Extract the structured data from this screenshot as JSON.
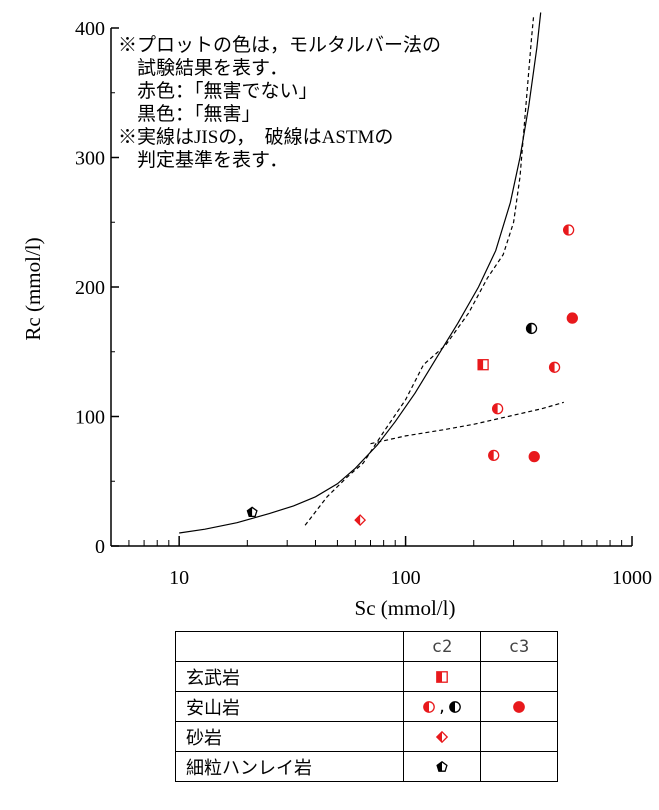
{
  "chart_data": {
    "type": "scatter",
    "title": "",
    "xlabel": "Sc (mmol/l)",
    "ylabel": "Rc (mmol/l)",
    "x_scale": "log",
    "xlim": [
      5,
      1000
    ],
    "ylim": [
      0,
      400
    ],
    "x_ticks": [
      "10",
      "100",
      "1000"
    ],
    "y_ticks": [
      "0",
      "100",
      "200",
      "300",
      "400"
    ],
    "notes": [
      "※プロットの色は，モルタルバー法の",
      "試験結果を表す．",
      "赤色：「無害でない」",
      "黒色：「無害」",
      "※実線はJISの，　破線はASTMの",
      "判定基準を表す．"
    ],
    "colors": {
      "red": "#e8191c",
      "black": "#000000"
    },
    "series": [
      {
        "name": "玄武岩",
        "marker": "square-half",
        "color": "#e8191c",
        "points": [
          [
            220,
            140
          ]
        ]
      },
      {
        "name": "安山岩",
        "marker": "circle-half",
        "color": "#e8191c",
        "points": [
          [
            525,
            244
          ],
          [
            455,
            138
          ],
          [
            255,
            106
          ],
          [
            245,
            70
          ]
        ]
      },
      {
        "name": "安山岩",
        "marker": "circle-half",
        "color": "#000000",
        "points": [
          [
            360,
            168
          ]
        ]
      },
      {
        "name": "安山岩",
        "marker": "circle",
        "color": "#e8191c",
        "points": [
          [
            545,
            176
          ],
          [
            370,
            69
          ]
        ]
      },
      {
        "name": "砂岩",
        "marker": "diamond-half",
        "color": "#e8191c",
        "points": [
          [
            63,
            20
          ]
        ]
      },
      {
        "name": "細粒ハンレイ岩",
        "marker": "pentagon-half",
        "color": "#000000",
        "points": [
          [
            21,
            26
          ]
        ]
      }
    ],
    "lines": [
      {
        "style": "solid",
        "points": [
          [
            10,
            10
          ],
          [
            13,
            13
          ],
          [
            18,
            18
          ],
          [
            25,
            25
          ],
          [
            32,
            31
          ],
          [
            40,
            38
          ],
          [
            50,
            48
          ],
          [
            60,
            60
          ],
          [
            75,
            78
          ],
          [
            90,
            96
          ],
          [
            110,
            118
          ],
          [
            140,
            148
          ],
          [
            170,
            172
          ],
          [
            210,
            200
          ],
          [
            250,
            228
          ],
          [
            290,
            265
          ],
          [
            320,
            300
          ],
          [
            350,
            340
          ],
          [
            380,
            385
          ],
          [
            395,
            412
          ]
        ]
      },
      {
        "style": "dashed",
        "points": [
          [
            36,
            16
          ],
          [
            45,
            38
          ],
          [
            55,
            53
          ],
          [
            65,
            64
          ],
          [
            80,
            88
          ],
          [
            100,
            113
          ],
          [
            120,
            140
          ],
          [
            150,
            155
          ],
          [
            190,
            180
          ],
          [
            230,
            207
          ],
          [
            270,
            225
          ],
          [
            300,
            250
          ],
          [
            320,
            285
          ],
          [
            340,
            340
          ],
          [
            360,
            392
          ],
          [
            368,
            410
          ]
        ]
      },
      {
        "style": "dashed",
        "points": [
          [
            70,
            79
          ],
          [
            100,
            85
          ],
          [
            150,
            90
          ],
          [
            200,
            94
          ],
          [
            300,
            101
          ],
          [
            400,
            106
          ],
          [
            500,
            111
          ]
        ]
      }
    ]
  },
  "legend_table": {
    "headers": [
      "",
      "c2",
      "c3"
    ],
    "rows": [
      {
        "label": "玄武岩",
        "c2": [
          {
            "marker": "square-half",
            "color": "#e8191c"
          }
        ],
        "c3": []
      },
      {
        "label": "安山岩",
        "c2": [
          {
            "marker": "circle-half",
            "color": "#e8191c"
          },
          {
            "marker": "circle-half",
            "color": "#000000"
          }
        ],
        "c3": [
          {
            "marker": "circle",
            "color": "#e8191c"
          }
        ]
      },
      {
        "label": "砂岩",
        "c2": [
          {
            "marker": "diamond-half",
            "color": "#e8191c"
          }
        ],
        "c3": []
      },
      {
        "label": "細粒ハンレイ岩",
        "c2": [
          {
            "marker": "pentagon-half",
            "color": "#000000"
          }
        ],
        "c3": []
      }
    ],
    "separator": ","
  }
}
